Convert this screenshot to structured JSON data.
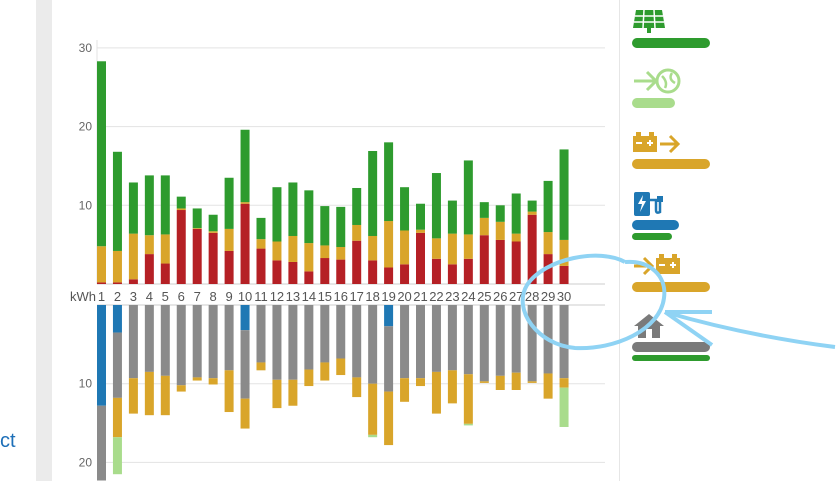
{
  "left_link_text": "ct",
  "chart_data": {
    "type": "bar",
    "stacked": true,
    "unit_label": "kWh",
    "categories": [
      "1",
      "2",
      "3",
      "4",
      "5",
      "6",
      "7",
      "8",
      "9",
      "10",
      "11",
      "12",
      "13",
      "14",
      "15",
      "16",
      "17",
      "18",
      "19",
      "20",
      "21",
      "22",
      "23",
      "24",
      "25",
      "26",
      "27",
      "28",
      "29",
      "30"
    ],
    "y_ticks_top": [
      10,
      20,
      30
    ],
    "y_ticks_bottom": [
      10,
      20
    ],
    "ylim_top": [
      0,
      30
    ],
    "ylim_bottom": [
      0,
      22
    ],
    "production": {
      "series": [
        {
          "color": "#b52025",
          "values": [
            0.2,
            0.2,
            0.6,
            3.8,
            2.6,
            9.4,
            7.0,
            6.5,
            4.2,
            10.2,
            4.5,
            3.0,
            2.8,
            1.6,
            3.3,
            3.1,
            5.5,
            3.0,
            2.1,
            2.5,
            6.5,
            3.2,
            2.5,
            3.2,
            6.2,
            5.6,
            5.4,
            8.8,
            3.8,
            2.3
          ]
        },
        {
          "color": "#d9a52a",
          "values": [
            4.6,
            4.0,
            5.8,
            2.4,
            3.7,
            0.2,
            0.1,
            0.2,
            2.8,
            0.2,
            1.2,
            2.4,
            3.3,
            3.6,
            1.6,
            1.6,
            2.0,
            3.1,
            5.9,
            4.3,
            0.4,
            2.6,
            3.9,
            3.1,
            2.2,
            2.3,
            1.0,
            0.4,
            2.8,
            3.3
          ]
        },
        {
          "color": "#2e9b2e",
          "values": [
            23.5,
            12.6,
            6.5,
            7.6,
            7.5,
            1.5,
            2.5,
            2.1,
            6.5,
            9.2,
            2.7,
            6.9,
            6.8,
            6.7,
            5.0,
            5.1,
            4.7,
            10.8,
            10.0,
            5.5,
            3.3,
            8.3,
            4.2,
            9.4,
            2.0,
            2.1,
            5.1,
            1.4,
            6.5,
            11.5
          ]
        }
      ]
    },
    "consumption": {
      "series": [
        {
          "color": "#1f78b4",
          "values": [
            12.8,
            3.5,
            0,
            0,
            0,
            0,
            0,
            0,
            0,
            3.2,
            0,
            0,
            0,
            0,
            0,
            0,
            0,
            0,
            2.7,
            0,
            0,
            0,
            0,
            0,
            0,
            0,
            0,
            0,
            0,
            0
          ]
        },
        {
          "color": "#8a8a8a",
          "values": [
            9.5,
            8.3,
            9.3,
            8.5,
            9.0,
            10.2,
            9.2,
            9.3,
            8.3,
            8.7,
            7.3,
            9.5,
            9.5,
            8.2,
            7.3,
            6.8,
            9.2,
            10.0,
            8.3,
            9.3,
            9.3,
            8.5,
            8.3,
            8.8,
            9.7,
            9.0,
            8.6,
            9.7,
            8.7,
            9.3
          ]
        },
        {
          "color": "#d9a52a",
          "values": [
            0,
            5.0,
            4.5,
            5.5,
            5.0,
            0.8,
            0.4,
            0.8,
            5.3,
            3.8,
            1.0,
            3.6,
            3.3,
            2.1,
            2.3,
            2.1,
            2.5,
            6.5,
            6.8,
            3.0,
            1.0,
            5.3,
            4.2,
            6.3,
            0.2,
            1.8,
            2.2,
            0.2,
            3.2,
            1.2
          ]
        },
        {
          "color": "#a9dc8c",
          "values": [
            0,
            4.7,
            0,
            0,
            0,
            0,
            0,
            0,
            0,
            0,
            0,
            0,
            0,
            0,
            0,
            0,
            0,
            0.3,
            0,
            0,
            0,
            0,
            0,
            0.2,
            0,
            0,
            0,
            0,
            0,
            5.0
          ]
        }
      ],
      "total": [
        22.3,
        21.5,
        13.8,
        14.0,
        14.0,
        11.0,
        9.6,
        10.1,
        13.6,
        15.7,
        8.3,
        13.1,
        12.8,
        10.3,
        9.6,
        8.9,
        11.7,
        16.8,
        17.8,
        12.3,
        10.3,
        13.8,
        12.5,
        15.3,
        9.9,
        10.8,
        10.8,
        9.9,
        11.9,
        15.5
      ]
    }
  },
  "legend": [
    {
      "icon": "solar-panel-icon",
      "color": "#2e9b2e",
      "bar_fill": 1.0
    },
    {
      "icon": "grid-export-icon",
      "color": "#a9dc8c",
      "bar_fill": 0.55
    },
    {
      "icon": "battery-discharge-icon",
      "color": "#d9a52a",
      "bar_fill": 1.0
    },
    {
      "icon": "ev-charger-icon",
      "color": "#1f78b4",
      "bar_fill": 0.6
    },
    {
      "icon": "battery-charge-icon",
      "color": "#d9a52a",
      "bar_fill": 1.0
    },
    {
      "icon": "house-icon",
      "color": "#7a7a7a",
      "bar_fill": 1.0
    }
  ],
  "annotation_color": "#8fd3f4"
}
